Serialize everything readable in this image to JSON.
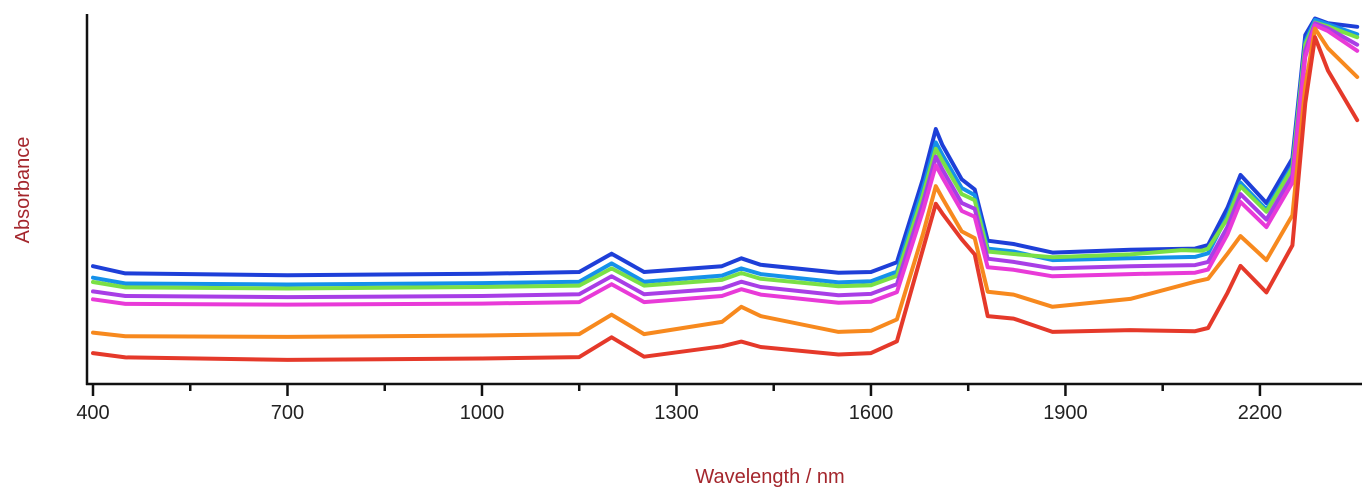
{
  "chart_data": {
    "type": "line",
    "title": "",
    "xlabel": "Wavelength / nm",
    "ylabel": "Absorbance",
    "xlim": [
      400,
      2350
    ],
    "ylim": [
      0,
      1
    ],
    "x_ticks_labeled": [
      400,
      700,
      1000,
      1300,
      1600,
      1900,
      2200
    ],
    "x_ticks_minor": [
      550,
      850,
      1150,
      1450,
      1750,
      2050
    ],
    "y_tick_labels": "none",
    "grid": false,
    "legend": "none",
    "series": [
      {
        "color": "#1e3fd8",
        "points": [
          [
            400,
            0.303
          ],
          [
            450,
            0.283
          ],
          [
            700,
            0.278
          ],
          [
            1000,
            0.282
          ],
          [
            1150,
            0.287
          ],
          [
            1200,
            0.338
          ],
          [
            1250,
            0.287
          ],
          [
            1370,
            0.303
          ],
          [
            1400,
            0.325
          ],
          [
            1430,
            0.307
          ],
          [
            1550,
            0.285
          ],
          [
            1600,
            0.287
          ],
          [
            1640,
            0.314
          ],
          [
            1680,
            0.545
          ],
          [
            1700,
            0.685
          ],
          [
            1710,
            0.641
          ],
          [
            1740,
            0.545
          ],
          [
            1760,
            0.517
          ],
          [
            1780,
            0.374
          ],
          [
            1820,
            0.365
          ],
          [
            1880,
            0.341
          ],
          [
            2000,
            0.349
          ],
          [
            2100,
            0.352
          ],
          [
            2120,
            0.362
          ],
          [
            2150,
            0.466
          ],
          [
            2170,
            0.557
          ],
          [
            2210,
            0.479
          ],
          [
            2250,
            0.603
          ],
          [
            2270,
            0.947
          ],
          [
            2285,
            0.993
          ],
          [
            2305,
            0.98
          ],
          [
            2350,
            0.97
          ]
        ]
      },
      {
        "color": "#1591ea",
        "points": [
          [
            400,
            0.271
          ],
          [
            450,
            0.255
          ],
          [
            700,
            0.252
          ],
          [
            1000,
            0.256
          ],
          [
            1150,
            0.26
          ],
          [
            1200,
            0.311
          ],
          [
            1250,
            0.26
          ],
          [
            1370,
            0.277
          ],
          [
            1400,
            0.297
          ],
          [
            1430,
            0.281
          ],
          [
            1550,
            0.258
          ],
          [
            1600,
            0.261
          ],
          [
            1640,
            0.288
          ],
          [
            1680,
            0.518
          ],
          [
            1700,
            0.648
          ],
          [
            1710,
            0.614
          ],
          [
            1740,
            0.521
          ],
          [
            1760,
            0.501
          ],
          [
            1780,
            0.352
          ],
          [
            1820,
            0.344
          ],
          [
            1880,
            0.32
          ],
          [
            2000,
            0.325
          ],
          [
            2100,
            0.329
          ],
          [
            2120,
            0.339
          ],
          [
            2150,
            0.444
          ],
          [
            2170,
            0.536
          ],
          [
            2210,
            0.461
          ],
          [
            2250,
            0.583
          ],
          [
            2270,
            0.929
          ],
          [
            2285,
            0.989
          ],
          [
            2305,
            0.977
          ],
          [
            2350,
            0.949
          ]
        ]
      },
      {
        "color": "#7ae046",
        "points": [
          [
            400,
            0.259
          ],
          [
            450,
            0.244
          ],
          [
            700,
            0.241
          ],
          [
            1000,
            0.245
          ],
          [
            1150,
            0.249
          ],
          [
            1200,
            0.297
          ],
          [
            1250,
            0.249
          ],
          [
            1370,
            0.265
          ],
          [
            1400,
            0.284
          ],
          [
            1430,
            0.268
          ],
          [
            1550,
            0.247
          ],
          [
            1600,
            0.25
          ],
          [
            1640,
            0.276
          ],
          [
            1680,
            0.5
          ],
          [
            1700,
            0.63
          ],
          [
            1710,
            0.597
          ],
          [
            1740,
            0.504
          ],
          [
            1760,
            0.487
          ],
          [
            1780,
            0.344
          ],
          [
            1820,
            0.337
          ],
          [
            1880,
            0.328
          ],
          [
            2000,
            0.336
          ],
          [
            2080,
            0.348
          ],
          [
            2110,
            0.346
          ],
          [
            2120,
            0.352
          ],
          [
            2150,
            0.436
          ],
          [
            2170,
            0.526
          ],
          [
            2210,
            0.455
          ],
          [
            2250,
            0.577
          ],
          [
            2270,
            0.921
          ],
          [
            2285,
            0.982
          ],
          [
            2305,
            0.971
          ],
          [
            2350,
            0.941
          ]
        ]
      },
      {
        "color": "#a83ee6",
        "points": [
          [
            400,
            0.233
          ],
          [
            450,
            0.22
          ],
          [
            700,
            0.217
          ],
          [
            1000,
            0.22
          ],
          [
            1150,
            0.225
          ],
          [
            1200,
            0.275
          ],
          [
            1250,
            0.225
          ],
          [
            1370,
            0.241
          ],
          [
            1400,
            0.26
          ],
          [
            1430,
            0.245
          ],
          [
            1550,
            0.222
          ],
          [
            1600,
            0.226
          ],
          [
            1640,
            0.253
          ],
          [
            1680,
            0.478
          ],
          [
            1700,
            0.608
          ],
          [
            1710,
            0.573
          ],
          [
            1740,
            0.479
          ],
          [
            1760,
            0.463
          ],
          [
            1780,
            0.324
          ],
          [
            1820,
            0.315
          ],
          [
            1880,
            0.297
          ],
          [
            2000,
            0.303
          ],
          [
            2100,
            0.306
          ],
          [
            2120,
            0.315
          ],
          [
            2150,
            0.413
          ],
          [
            2170,
            0.504
          ],
          [
            2210,
            0.433
          ],
          [
            2250,
            0.556
          ],
          [
            2270,
            0.904
          ],
          [
            2285,
            0.98
          ],
          [
            2305,
            0.966
          ],
          [
            2350,
            0.92
          ]
        ]
      },
      {
        "color": "#e83ad8",
        "points": [
          [
            400,
            0.211
          ],
          [
            450,
            0.198
          ],
          [
            700,
            0.196
          ],
          [
            1000,
            0.199
          ],
          [
            1150,
            0.203
          ],
          [
            1200,
            0.253
          ],
          [
            1250,
            0.203
          ],
          [
            1370,
            0.22
          ],
          [
            1400,
            0.239
          ],
          [
            1430,
            0.224
          ],
          [
            1550,
            0.201
          ],
          [
            1600,
            0.204
          ],
          [
            1640,
            0.231
          ],
          [
            1680,
            0.456
          ],
          [
            1700,
            0.584
          ],
          [
            1710,
            0.551
          ],
          [
            1740,
            0.457
          ],
          [
            1760,
            0.441
          ],
          [
            1780,
            0.3
          ],
          [
            1820,
            0.293
          ],
          [
            1880,
            0.275
          ],
          [
            2000,
            0.281
          ],
          [
            2100,
            0.285
          ],
          [
            2120,
            0.294
          ],
          [
            2150,
            0.392
          ],
          [
            2170,
            0.482
          ],
          [
            2210,
            0.412
          ],
          [
            2250,
            0.536
          ],
          [
            2270,
            0.886
          ],
          [
            2285,
            0.974
          ],
          [
            2305,
            0.958
          ],
          [
            2350,
            0.903
          ]
        ]
      },
      {
        "color": "#f7891e",
        "points": [
          [
            400,
            0.118
          ],
          [
            450,
            0.108
          ],
          [
            700,
            0.106
          ],
          [
            1000,
            0.11
          ],
          [
            1150,
            0.114
          ],
          [
            1200,
            0.168
          ],
          [
            1250,
            0.114
          ],
          [
            1370,
            0.148
          ],
          [
            1400,
            0.19
          ],
          [
            1430,
            0.164
          ],
          [
            1550,
            0.12
          ],
          [
            1600,
            0.123
          ],
          [
            1640,
            0.155
          ],
          [
            1680,
            0.391
          ],
          [
            1700,
            0.526
          ],
          [
            1710,
            0.493
          ],
          [
            1740,
            0.4
          ],
          [
            1760,
            0.381
          ],
          [
            1780,
            0.232
          ],
          [
            1820,
            0.224
          ],
          [
            1880,
            0.19
          ],
          [
            2000,
            0.212
          ],
          [
            2100,
            0.26
          ],
          [
            2120,
            0.268
          ],
          [
            2150,
            0.338
          ],
          [
            2170,
            0.387
          ],
          [
            2210,
            0.32
          ],
          [
            2250,
            0.445
          ],
          [
            2270,
            0.803
          ],
          [
            2285,
            0.965
          ],
          [
            2305,
            0.91
          ],
          [
            2350,
            0.83
          ]
        ]
      },
      {
        "color": "#e5392a",
        "points": [
          [
            400,
            0.061
          ],
          [
            450,
            0.049
          ],
          [
            700,
            0.042
          ],
          [
            1000,
            0.046
          ],
          [
            1150,
            0.05
          ],
          [
            1200,
            0.105
          ],
          [
            1250,
            0.051
          ],
          [
            1370,
            0.08
          ],
          [
            1400,
            0.093
          ],
          [
            1430,
            0.078
          ],
          [
            1550,
            0.057
          ],
          [
            1600,
            0.061
          ],
          [
            1640,
            0.094
          ],
          [
            1680,
            0.349
          ],
          [
            1700,
            0.477
          ],
          [
            1710,
            0.45
          ],
          [
            1740,
            0.378
          ],
          [
            1760,
            0.336
          ],
          [
            1780,
            0.164
          ],
          [
            1820,
            0.157
          ],
          [
            1880,
            0.12
          ],
          [
            2000,
            0.125
          ],
          [
            2100,
            0.122
          ],
          [
            2120,
            0.131
          ],
          [
            2150,
            0.229
          ],
          [
            2170,
            0.304
          ],
          [
            2210,
            0.23
          ],
          [
            2250,
            0.361
          ],
          [
            2270,
            0.758
          ],
          [
            2285,
            0.941
          ],
          [
            2305,
            0.848
          ],
          [
            2350,
            0.71
          ]
        ]
      }
    ]
  }
}
